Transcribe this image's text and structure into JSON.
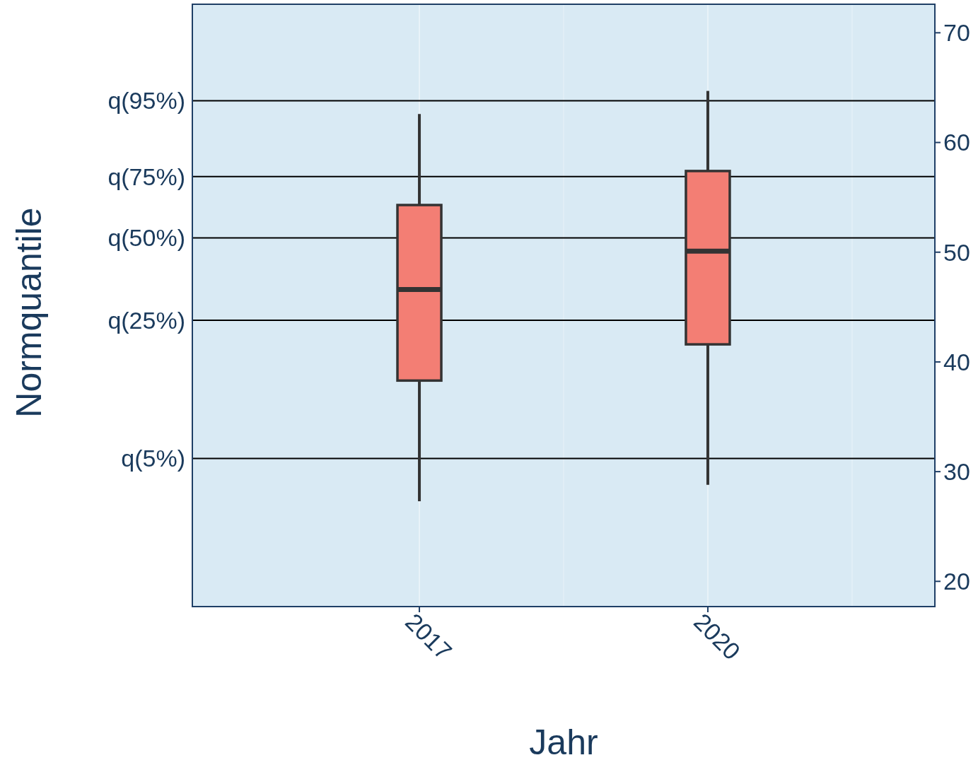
{
  "chart_data": {
    "type": "box",
    "xlabel": "Jahr",
    "ylabel": "Normquantile",
    "categories": [
      "2017",
      "2020"
    ],
    "boxes": [
      {
        "low": 27.3,
        "q1": 38.3,
        "median": 46.6,
        "q3": 54.3,
        "high": 62.6
      },
      {
        "low": 28.8,
        "q1": 41.6,
        "median": 50.1,
        "q3": 57.4,
        "high": 64.7
      }
    ],
    "color": "#f37e74",
    "ylim": [
      17.7,
      72.6
    ],
    "yticks": [
      20,
      30,
      40,
      50,
      60,
      70
    ],
    "ref_lines": [
      {
        "axis": "y",
        "value": 31.2,
        "label": "q(5%)",
        "color": "#000000"
      },
      {
        "axis": "y",
        "value": 43.8,
        "label": "q(25%)",
        "color": "#000000"
      },
      {
        "axis": "y",
        "value": 51.3,
        "label": "q(50%)",
        "color": "#000000"
      },
      {
        "axis": "y",
        "value": 56.9,
        "label": "q(75%)",
        "color": "#000000"
      },
      {
        "axis": "y",
        "value": 63.8,
        "label": "q(95%)",
        "color": "#000000"
      }
    ],
    "grid": "x"
  }
}
